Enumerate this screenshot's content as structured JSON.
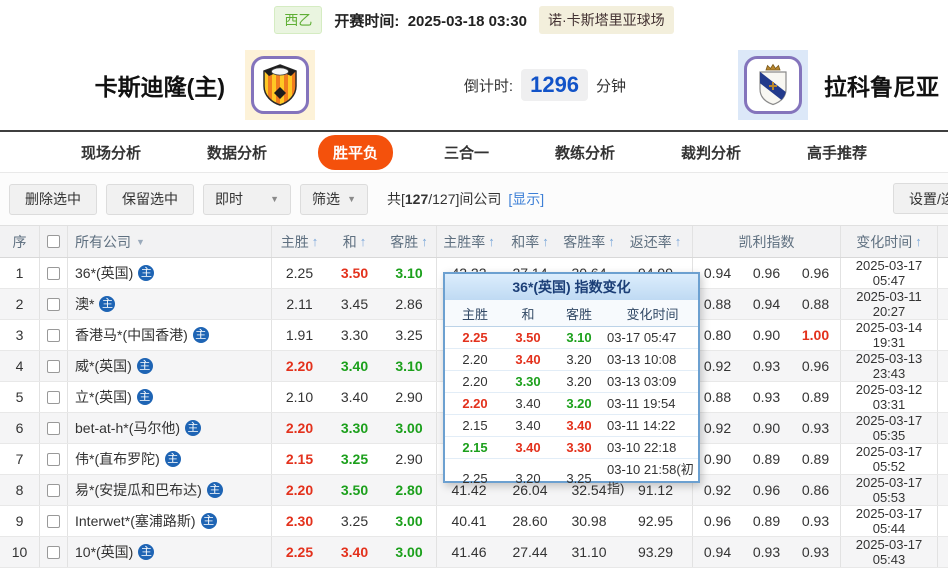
{
  "top_bar": {
    "league": "西乙",
    "kickoff_label": "开赛时间:",
    "kickoff_time": "2025-03-18 03:30",
    "venue": "诺·卡斯塔里亚球场"
  },
  "match": {
    "home_name": "卡斯迪隆(主)",
    "away_name": "拉科鲁尼亚",
    "countdown_label": "倒计时:",
    "countdown_value": "1296",
    "countdown_unit": "分钟"
  },
  "nav": {
    "tabs": [
      {
        "key": "live",
        "label": "现场分析",
        "active": false
      },
      {
        "key": "data",
        "label": "数据分析",
        "active": false
      },
      {
        "key": "wdl",
        "label": "胜平负",
        "active": true
      },
      {
        "key": "three-in-one",
        "label": "三合一",
        "active": false
      },
      {
        "key": "coach",
        "label": "教练分析",
        "active": false
      },
      {
        "key": "referee",
        "label": "裁判分析",
        "active": false
      },
      {
        "key": "expert",
        "label": "高手推荐",
        "active": false
      }
    ]
  },
  "toolbar": {
    "delete_btn": "删除选中",
    "keep_btn": "保留选中",
    "instant_dropdown": "即时",
    "filter_dropdown": "筛选",
    "count_prefix": "共[",
    "count_value": "127",
    "count_suffix": "/127]间公司",
    "show_link": "[显示]",
    "settings_btn": "设置/选择"
  },
  "icons": {
    "sort_asc": "↑",
    "dropdown_caret": "▼",
    "company_caret": "▼"
  },
  "table": {
    "main_icon": "主",
    "headers": {
      "num": "序",
      "company": "所有公司",
      "home": "主胜",
      "draw": "和",
      "away": "客胜",
      "home_rate": "主胜率",
      "draw_rate": "和率",
      "away_rate": "客胜率",
      "return_rate": "返还率",
      "kelly": "凯利指数",
      "change_time": "变化时间"
    },
    "rows": [
      {
        "num": "1",
        "company": "36*(英国)",
        "odds": [
          "2.25",
          "3.50",
          "3.10"
        ],
        "odds_c": [
          "",
          "up",
          "down"
        ],
        "rates": [
          "42.22",
          "27.14",
          "30.64",
          "94.99"
        ],
        "kelly": [
          "0.94",
          "0.96",
          "0.96"
        ],
        "kelly_c": [
          "",
          "",
          ""
        ],
        "time": "2025-03-17 05:47"
      },
      {
        "num": "2",
        "company": "澳*",
        "odds": [
          "2.11",
          "3.45",
          "2.86"
        ],
        "odds_c": [
          "",
          "",
          ""
        ],
        "rates": [
          "",
          "",
          "",
          ""
        ],
        "kelly": [
          "0.88",
          "0.94",
          "0.88"
        ],
        "kelly_c": [
          "",
          "",
          ""
        ],
        "time": "2025-03-11 20:27"
      },
      {
        "num": "3",
        "company": "香港马*(中国香港)",
        "odds": [
          "1.91",
          "3.30",
          "3.25"
        ],
        "odds_c": [
          "",
          "",
          ""
        ],
        "rates": [
          "",
          "",
          "",
          ""
        ],
        "kelly": [
          "0.80",
          "0.90",
          "1.00"
        ],
        "kelly_c": [
          "",
          "",
          "up"
        ],
        "time": "2025-03-14 19:31"
      },
      {
        "num": "4",
        "company": "威*(英国)",
        "odds": [
          "2.20",
          "3.40",
          "3.10"
        ],
        "odds_c": [
          "up",
          "down",
          "down"
        ],
        "rates": [
          "",
          "",
          "",
          ""
        ],
        "kelly": [
          "0.92",
          "0.93",
          "0.96"
        ],
        "kelly_c": [
          "",
          "",
          ""
        ],
        "time": "2025-03-13 23:43"
      },
      {
        "num": "5",
        "company": "立*(英国)",
        "odds": [
          "2.10",
          "3.40",
          "2.90"
        ],
        "odds_c": [
          "",
          "",
          ""
        ],
        "rates": [
          "",
          "",
          "",
          ""
        ],
        "kelly": [
          "0.88",
          "0.93",
          "0.89"
        ],
        "kelly_c": [
          "",
          "",
          ""
        ],
        "time": "2025-03-12 03:31"
      },
      {
        "num": "6",
        "company": "bet-at-h*(马尔他)",
        "odds": [
          "2.20",
          "3.30",
          "3.00"
        ],
        "odds_c": [
          "up",
          "down",
          "down"
        ],
        "rates": [
          "",
          "",
          "",
          ""
        ],
        "kelly": [
          "0.92",
          "0.90",
          "0.93"
        ],
        "kelly_c": [
          "",
          "",
          ""
        ],
        "time": "2025-03-17 05:35"
      },
      {
        "num": "7",
        "company": "伟*(直布罗陀)",
        "odds": [
          "2.15",
          "3.25",
          "2.90"
        ],
        "odds_c": [
          "up",
          "down",
          ""
        ],
        "rates": [
          "",
          "",
          "",
          ""
        ],
        "kelly": [
          "0.90",
          "0.89",
          "0.89"
        ],
        "kelly_c": [
          "",
          "",
          ""
        ],
        "time": "2025-03-17 05:52"
      },
      {
        "num": "8",
        "company": "易*(安提瓜和巴布达)",
        "odds": [
          "2.20",
          "3.50",
          "2.80"
        ],
        "odds_c": [
          "up",
          "down",
          "down"
        ],
        "rates": [
          "41.42",
          "26.04",
          "32.54",
          "91.12"
        ],
        "kelly": [
          "0.92",
          "0.96",
          "0.86"
        ],
        "kelly_c": [
          "",
          "",
          ""
        ],
        "time": "2025-03-17 05:53"
      },
      {
        "num": "9",
        "company": "Interwet*(塞浦路斯)",
        "odds": [
          "2.30",
          "3.25",
          "3.00"
        ],
        "odds_c": [
          "up",
          "",
          "down"
        ],
        "rates": [
          "40.41",
          "28.60",
          "30.98",
          "92.95"
        ],
        "kelly": [
          "0.96",
          "0.89",
          "0.93"
        ],
        "kelly_c": [
          "",
          "",
          ""
        ],
        "time": "2025-03-17 05:44"
      },
      {
        "num": "10",
        "company": "10*(英国)",
        "odds": [
          "2.25",
          "3.40",
          "3.00"
        ],
        "odds_c": [
          "up",
          "up",
          "down"
        ],
        "rates": [
          "41.46",
          "27.44",
          "31.10",
          "93.29"
        ],
        "kelly": [
          "0.94",
          "0.93",
          "0.93"
        ],
        "kelly_c": [
          "",
          "",
          ""
        ],
        "time": "2025-03-17 05:43"
      }
    ]
  },
  "popup": {
    "title": "36*(英国) 指数变化",
    "headers": {
      "home": "主胜",
      "draw": "和",
      "away": "客胜",
      "time": "变化时间"
    },
    "rows": [
      {
        "home": "2.25",
        "home_c": "up",
        "draw": "3.50",
        "draw_c": "up",
        "away": "3.10",
        "away_c": "down",
        "time": "03-17 05:47"
      },
      {
        "home": "2.20",
        "home_c": "",
        "draw": "3.40",
        "draw_c": "up",
        "away": "3.20",
        "away_c": "",
        "time": "03-13 10:08"
      },
      {
        "home": "2.20",
        "home_c": "",
        "draw": "3.30",
        "draw_c": "down",
        "away": "3.20",
        "away_c": "",
        "time": "03-13 03:09"
      },
      {
        "home": "2.20",
        "home_c": "up",
        "draw": "3.40",
        "draw_c": "",
        "away": "3.20",
        "away_c": "down",
        "time": "03-11 19:54"
      },
      {
        "home": "2.15",
        "home_c": "",
        "draw": "3.40",
        "draw_c": "",
        "away": "3.40",
        "away_c": "up",
        "time": "03-11 14:22"
      },
      {
        "home": "2.15",
        "home_c": "down",
        "draw": "3.40",
        "draw_c": "up",
        "away": "3.30",
        "away_c": "up",
        "time": "03-10 22:18"
      },
      {
        "home": "2.25",
        "home_c": "",
        "draw": "3.20",
        "draw_c": "",
        "away": "3.25",
        "away_c": "",
        "time": "03-10 21:58(初指)"
      }
    ]
  },
  "colors": {
    "odds_up_red": "#e3311c",
    "odds_down_green": "#1ca01c",
    "countdown_blue": "#1253c8",
    "link_blue": "#3d7fd6",
    "active_tab_orange": "#f4510c",
    "league_green": "#5fae35",
    "popup_border_blue": "#6ca0d0",
    "main_icon_blue": "#1e64b4"
  }
}
